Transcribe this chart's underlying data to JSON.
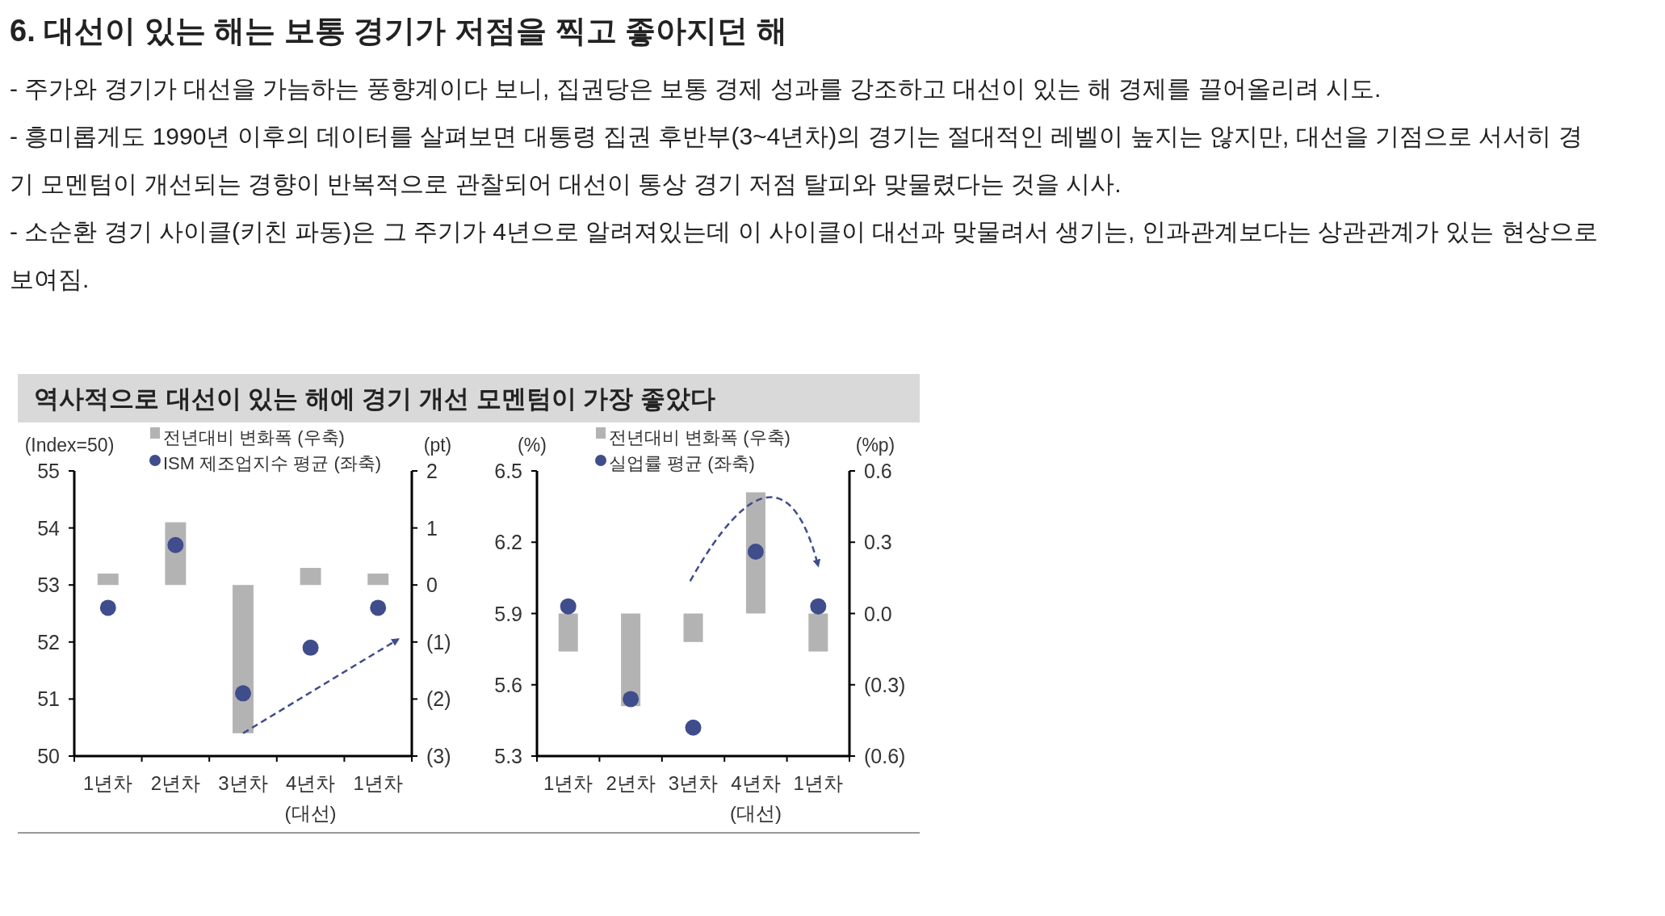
{
  "chart_data": [
    {
      "type": "other",
      "title": "6. 대선이 있는 해는 보통 경기가 저점을 찍고 좋아지던 해",
      "annotations": [
        "- 주가와 경기가 대선을 가늠하는 풍향계이다 보니, 집권당은 보통 경제 성과를 강조하고 대선이 있는 해 경제를 끌어올리려 시도.",
        "- 흥미롭게도 1990년 이후의 데이터를 살펴보면 대통령 집권 후반부(3~4년차)의 경기는 절대적인 레벨이 높지는 않지만, 대선을 기점으로 서서히 경기 모멘텀이 개선되는 경향이 반복적으로 관찰되어 대선이 통상 경기 저점 탈피와 맞물렸다는 것을 시사.",
        "- 소순환 경기 사이클(키친 파동)은 그 주기가 4년으로 알려져있는데 이 사이클이 대선과 맞물려서 생기는, 인과관계보다는 상관관계가 있는 현상으로 보여짐."
      ]
    },
    {
      "type": "bar",
      "title": "역사적으로 대선이 있는 해에 경기 개선 모멘텀이 가장 좋았다",
      "ylabel": "(Index=50)",
      "y2label": "(pt)",
      "categories": [
        "1년차",
        "2년차",
        "3년차",
        "4년차\n(대선)",
        "1년차"
      ],
      "series": [
        {
          "name": "전년대비 변화폭 (우축)",
          "type": "bar",
          "axis": "y2",
          "color": "#b3b3b3",
          "values": [
            0.2,
            1.1,
            -2.6,
            0.3,
            0.2
          ]
        },
        {
          "name": "ISM 제조업지수 평균 (좌축)",
          "type": "scatter",
          "color": "#3f4d8c",
          "values": [
            52.6,
            53.7,
            51.1,
            51.9,
            52.6
          ]
        }
      ],
      "ylim": [
        50,
        55
      ],
      "yticks": [
        50,
        51,
        52,
        53,
        54,
        55
      ],
      "y2lim": [
        -3,
        2
      ],
      "y2ticks": [
        {
          "value": -3,
          "label": "(3)"
        },
        {
          "value": -2,
          "label": "(2)"
        },
        {
          "value": -1,
          "label": "(1)"
        },
        0,
        1,
        2
      ],
      "legend": "top",
      "marker": "circle",
      "grid": false
    },
    {
      "type": "bar",
      "ylabel": "(%)",
      "y2label": "(%p)",
      "categories": [
        "1년차",
        "2년차",
        "3년차",
        "4년차\n(대선)",
        "1년차"
      ],
      "series": [
        {
          "name": "전년대비 변화폭 (우축)",
          "type": "bar",
          "axis": "y2",
          "color": "#b3b3b3",
          "values": [
            -0.16,
            -0.39,
            -0.12,
            0.51,
            -0.16
          ]
        },
        {
          "name": "실업률 평균 (좌축)",
          "type": "scatter",
          "color": "#3f4d8c",
          "values": [
            5.93,
            5.54,
            5.42,
            6.16,
            5.93
          ]
        }
      ],
      "ylim": [
        5.3,
        6.5
      ],
      "yticks": [
        5.3,
        5.6,
        5.9,
        6.2,
        6.5
      ],
      "y2lim": [
        -0.6,
        0.6
      ],
      "y2ticks": [
        {
          "value": -0.6,
          "label": "(0.6)"
        },
        {
          "value": -0.3,
          "label": "(0.3)"
        },
        {
          "value": 0,
          "label": "0.0"
        },
        0.3,
        0.6
      ],
      "legend": "top",
      "marker": "circle",
      "grid": false
    }
  ]
}
